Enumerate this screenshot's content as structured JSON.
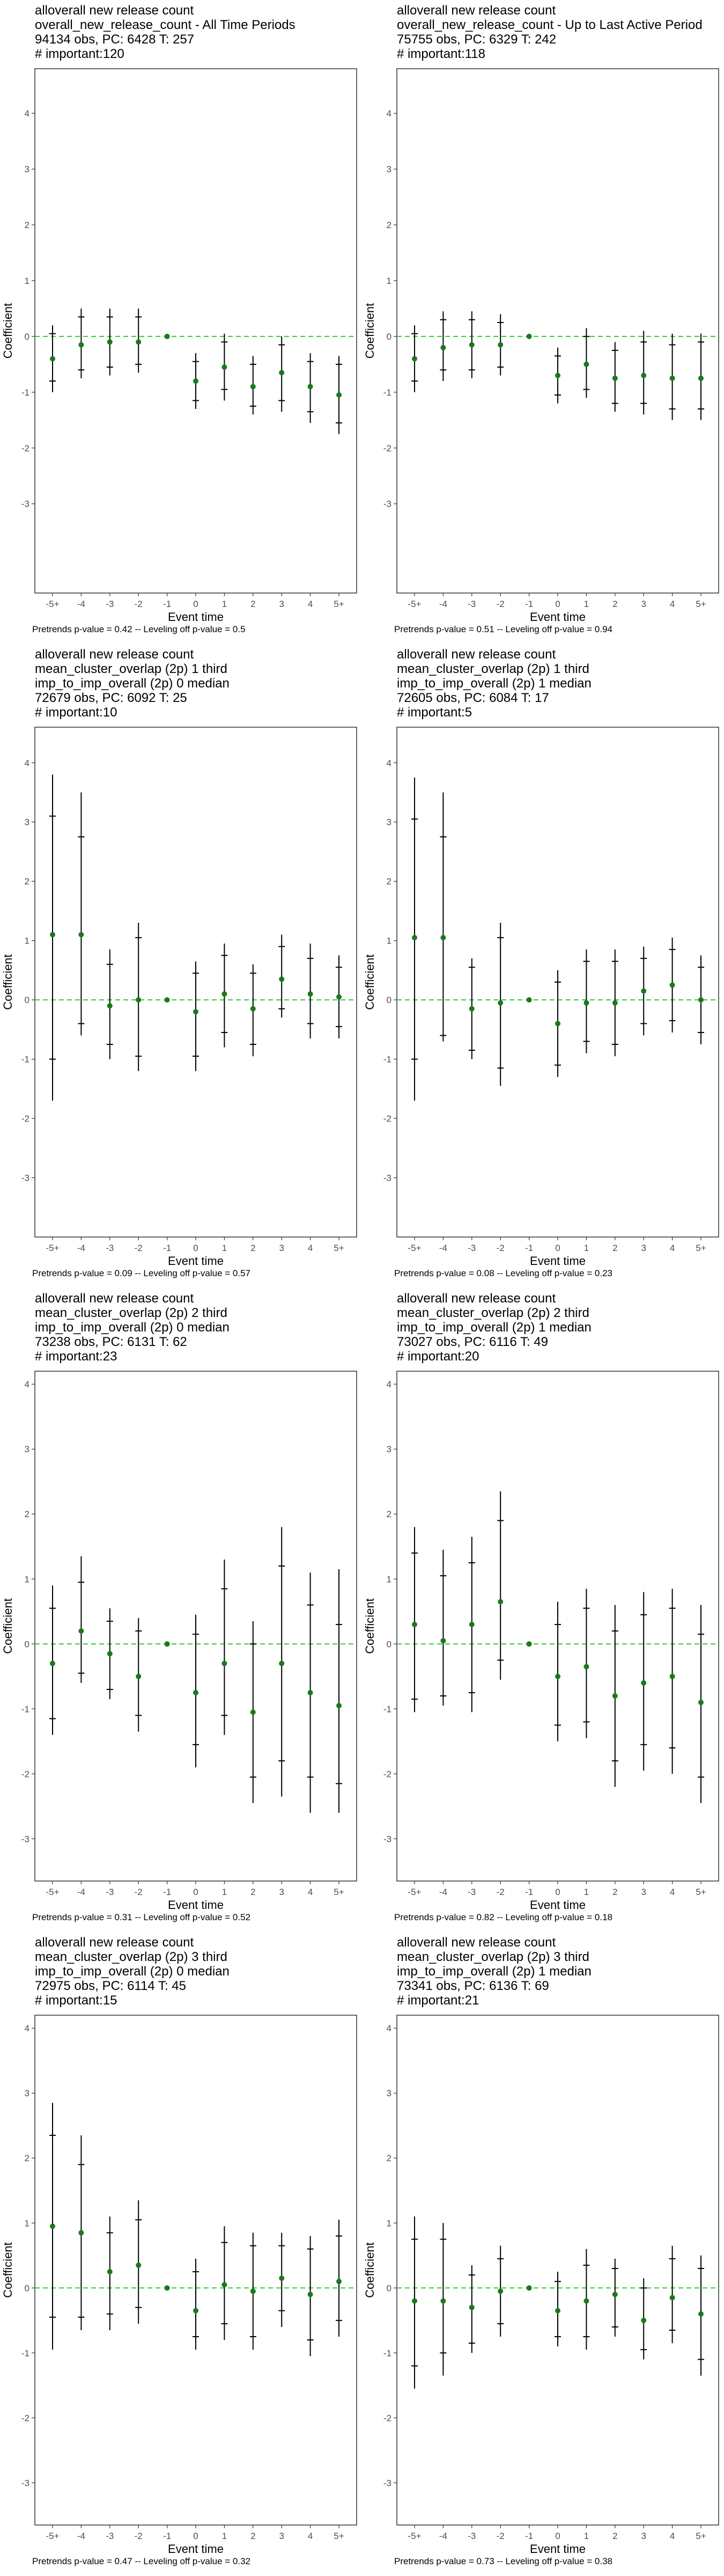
{
  "chart_data": [
    {
      "type": "scatter",
      "title_lines": [
        "alloverall new release count",
        "overall_new_release_count - All Time Periods",
        "94134 obs, PC: 6428 T: 257",
        "# important:120"
      ],
      "xlabel": "Event time",
      "ylabel": "Coefficient",
      "categories": [
        "-5+",
        "-4",
        "-3",
        "-2",
        "-1",
        "0",
        "1",
        "2",
        "3",
        "4",
        "5+"
      ],
      "ylim": [
        -4.6,
        4.8
      ],
      "yticks": [
        -3,
        -2,
        -1,
        0,
        1,
        2,
        3,
        4
      ],
      "estimates": [
        -0.4,
        -0.15,
        -0.1,
        -0.1,
        0.0,
        -0.8,
        -0.55,
        -0.9,
        -0.65,
        -0.9,
        -1.05
      ],
      "ci95": [
        [
          -1.0,
          0.2
        ],
        [
          -0.75,
          0.5
        ],
        [
          -0.7,
          0.5
        ],
        [
          -0.65,
          0.5
        ],
        [
          0.0,
          0.0
        ],
        [
          -1.3,
          -0.3
        ],
        [
          -1.15,
          0.05
        ],
        [
          -1.4,
          -0.35
        ],
        [
          -1.35,
          0.0
        ],
        [
          -1.55,
          -0.3
        ],
        [
          -1.75,
          -0.35
        ]
      ],
      "ci90": [
        [
          -0.8,
          0.05
        ],
        [
          -0.6,
          0.35
        ],
        [
          -0.55,
          0.35
        ],
        [
          -0.5,
          0.35
        ],
        [
          0.0,
          0.0
        ],
        [
          -1.15,
          -0.45
        ],
        [
          -0.95,
          -0.1
        ],
        [
          -1.25,
          -0.5
        ],
        [
          -1.15,
          -0.15
        ],
        [
          -1.35,
          -0.45
        ],
        [
          -1.55,
          -0.5
        ]
      ],
      "reference_line": 0,
      "footnote": "Pretrends p-value = 0.42 -- Leveling off p-value = 0.5"
    },
    {
      "type": "scatter",
      "title_lines": [
        "alloverall new release count",
        "overall_new_release_count - Up to Last Active Period",
        "75755 obs, PC: 6329 T: 242",
        "# important:118"
      ],
      "xlabel": "Event time",
      "ylabel": "Coefficient",
      "categories": [
        "-5+",
        "-4",
        "-3",
        "-2",
        "-1",
        "0",
        "1",
        "2",
        "3",
        "4",
        "5+"
      ],
      "ylim": [
        -4.6,
        4.8
      ],
      "yticks": [
        -3,
        -2,
        -1,
        0,
        1,
        2,
        3,
        4
      ],
      "estimates": [
        -0.4,
        -0.2,
        -0.15,
        -0.15,
        0.0,
        -0.7,
        -0.5,
        -0.75,
        -0.7,
        -0.75,
        -0.75
      ],
      "ci95": [
        [
          -1.0,
          0.2
        ],
        [
          -0.8,
          0.45
        ],
        [
          -0.75,
          0.45
        ],
        [
          -0.7,
          0.4
        ],
        [
          0.0,
          0.0
        ],
        [
          -1.2,
          -0.2
        ],
        [
          -1.1,
          0.15
        ],
        [
          -1.35,
          -0.1
        ],
        [
          -1.4,
          0.1
        ],
        [
          -1.5,
          0.05
        ],
        [
          -1.5,
          0.05
        ]
      ],
      "ci90": [
        [
          -0.8,
          0.05
        ],
        [
          -0.6,
          0.3
        ],
        [
          -0.6,
          0.3
        ],
        [
          -0.55,
          0.25
        ],
        [
          0.0,
          0.0
        ],
        [
          -1.05,
          -0.35
        ],
        [
          -0.95,
          0.0
        ],
        [
          -1.2,
          -0.25
        ],
        [
          -1.2,
          -0.1
        ],
        [
          -1.3,
          -0.15
        ],
        [
          -1.3,
          -0.1
        ]
      ],
      "reference_line": 0,
      "footnote": "Pretrends p-value = 0.51 -- Leveling off p-value = 0.94"
    },
    {
      "type": "scatter",
      "title_lines": [
        "alloverall new release count",
        "mean_cluster_overlap (2p) 1 third",
        "imp_to_imp_overall (2p) 0 median",
        "72679 obs, PC: 6092 T: 25",
        "# important:10"
      ],
      "xlabel": "Event time",
      "ylabel": "Coefficient",
      "categories": [
        "-5+",
        "-4",
        "-3",
        "-2",
        "-1",
        "0",
        "1",
        "2",
        "3",
        "4",
        "5+"
      ],
      "ylim": [
        -4.0,
        4.6
      ],
      "yticks": [
        -3,
        -2,
        -1,
        0,
        1,
        2,
        3,
        4
      ],
      "estimates": [
        1.1,
        1.1,
        -0.1,
        0.0,
        0.0,
        -0.2,
        0.1,
        -0.15,
        0.35,
        0.1,
        0.05
      ],
      "ci95": [
        [
          -1.7,
          3.8
        ],
        [
          -0.6,
          3.5
        ],
        [
          -1.0,
          0.85
        ],
        [
          -1.2,
          1.3
        ],
        [
          0.0,
          0.0
        ],
        [
          -1.2,
          0.65
        ],
        [
          -0.8,
          0.95
        ],
        [
          -0.95,
          0.6
        ],
        [
          -0.3,
          1.1
        ],
        [
          -0.65,
          0.95
        ],
        [
          -0.65,
          0.75
        ]
      ],
      "ci90": [
        [
          -1.0,
          3.1
        ],
        [
          -0.4,
          2.75
        ],
        [
          -0.75,
          0.6
        ],
        [
          -0.95,
          1.05
        ],
        [
          0.0,
          0.0
        ],
        [
          -0.95,
          0.45
        ],
        [
          -0.55,
          0.75
        ],
        [
          -0.75,
          0.45
        ],
        [
          -0.15,
          0.9
        ],
        [
          -0.4,
          0.7
        ],
        [
          -0.45,
          0.55
        ]
      ],
      "reference_line": 0,
      "footnote": "Pretrends p-value = 0.09 -- Leveling off p-value = 0.57"
    },
    {
      "type": "scatter",
      "title_lines": [
        "alloverall new release count",
        "mean_cluster_overlap (2p) 1 third",
        "imp_to_imp_overall (2p) 1 median",
        "72605 obs, PC: 6084 T: 17",
        "# important:5"
      ],
      "xlabel": "Event time",
      "ylabel": "Coefficient",
      "categories": [
        "-5+",
        "-4",
        "-3",
        "-2",
        "-1",
        "0",
        "1",
        "2",
        "3",
        "4",
        "5+"
      ],
      "ylim": [
        -4.0,
        4.6
      ],
      "yticks": [
        -3,
        -2,
        -1,
        0,
        1,
        2,
        3,
        4
      ],
      "estimates": [
        1.05,
        1.05,
        -0.15,
        -0.05,
        0.0,
        -0.4,
        -0.05,
        -0.05,
        0.15,
        0.25,
        0.0
      ],
      "ci95": [
        [
          -1.7,
          3.75
        ],
        [
          -0.7,
          3.5
        ],
        [
          -1.0,
          0.7
        ],
        [
          -1.45,
          1.3
        ],
        [
          0.0,
          0.0
        ],
        [
          -1.3,
          0.5
        ],
        [
          -0.9,
          0.85
        ],
        [
          -0.95,
          0.85
        ],
        [
          -0.6,
          0.9
        ],
        [
          -0.55,
          1.05
        ],
        [
          -0.75,
          0.75
        ]
      ],
      "ci90": [
        [
          -1.0,
          3.05
        ],
        [
          -0.6,
          2.75
        ],
        [
          -0.85,
          0.55
        ],
        [
          -1.15,
          1.05
        ],
        [
          0.0,
          0.0
        ],
        [
          -1.1,
          0.3
        ],
        [
          -0.7,
          0.65
        ],
        [
          -0.75,
          0.65
        ],
        [
          -0.4,
          0.7
        ],
        [
          -0.35,
          0.85
        ],
        [
          -0.55,
          0.55
        ]
      ],
      "reference_line": 0,
      "footnote": "Pretrends p-value = 0.08 -- Leveling off p-value = 0.23"
    },
    {
      "type": "scatter",
      "title_lines": [
        "alloverall new release count",
        "mean_cluster_overlap (2p) 2 third",
        "imp_to_imp_overall (2p) 0 median",
        "73238 obs, PC: 6131 T: 62",
        "# important:23"
      ],
      "xlabel": "Event time",
      "ylabel": "Coefficient",
      "categories": [
        "-5+",
        "-4",
        "-3",
        "-2",
        "-1",
        "0",
        "1",
        "2",
        "3",
        "4",
        "5+"
      ],
      "ylim": [
        -3.65,
        4.2
      ],
      "yticks": [
        -3,
        -2,
        -1,
        0,
        1,
        2,
        3,
        4
      ],
      "estimates": [
        -0.3,
        0.2,
        -0.15,
        -0.5,
        0.0,
        -0.75,
        -0.3,
        -1.05,
        -0.3,
        -0.75,
        -0.95
      ],
      "ci95": [
        [
          -1.4,
          0.9
        ],
        [
          -0.6,
          1.35
        ],
        [
          -0.85,
          0.55
        ],
        [
          -1.35,
          0.4
        ],
        [
          0.0,
          0.0
        ],
        [
          -1.9,
          0.45
        ],
        [
          -1.4,
          1.3
        ],
        [
          -2.45,
          0.35
        ],
        [
          -2.35,
          1.8
        ],
        [
          -2.6,
          1.1
        ],
        [
          -2.6,
          1.15
        ]
      ],
      "ci90": [
        [
          -1.15,
          0.55
        ],
        [
          -0.45,
          0.95
        ],
        [
          -0.7,
          0.35
        ],
        [
          -1.1,
          0.2
        ],
        [
          0.0,
          0.0
        ],
        [
          -1.55,
          0.15
        ],
        [
          -1.1,
          0.85
        ],
        [
          -2.05,
          0.0
        ],
        [
          -1.8,
          1.2
        ],
        [
          -2.05,
          0.6
        ],
        [
          -2.15,
          0.3
        ]
      ],
      "reference_line": 0,
      "footnote": "Pretrends p-value = 0.31 -- Leveling off p-value = 0.52"
    },
    {
      "type": "scatter",
      "title_lines": [
        "alloverall new release count",
        "mean_cluster_overlap (2p) 2 third",
        "imp_to_imp_overall (2p) 1 median",
        "73027 obs, PC: 6116 T: 49",
        "# important:20"
      ],
      "xlabel": "Event time",
      "ylabel": "Coefficient",
      "categories": [
        "-5+",
        "-4",
        "-3",
        "-2",
        "-1",
        "0",
        "1",
        "2",
        "3",
        "4",
        "5+"
      ],
      "ylim": [
        -3.65,
        4.2
      ],
      "yticks": [
        -3,
        -2,
        -1,
        0,
        1,
        2,
        3,
        4
      ],
      "estimates": [
        0.3,
        0.05,
        0.3,
        0.65,
        0.0,
        -0.5,
        -0.35,
        -0.8,
        -0.6,
        -0.5,
        -0.9
      ],
      "ci95": [
        [
          -1.05,
          1.8
        ],
        [
          -0.95,
          1.45
        ],
        [
          -1.05,
          1.65
        ],
        [
          -0.55,
          2.35
        ],
        [
          0.0,
          0.0
        ],
        [
          -1.5,
          0.65
        ],
        [
          -1.45,
          0.85
        ],
        [
          -2.2,
          0.6
        ],
        [
          -1.95,
          0.8
        ],
        [
          -2.0,
          0.85
        ],
        [
          -2.45,
          0.6
        ]
      ],
      "ci90": [
        [
          -0.85,
          1.4
        ],
        [
          -0.8,
          1.05
        ],
        [
          -0.75,
          1.25
        ],
        [
          -0.25,
          1.9
        ],
        [
          0.0,
          0.0
        ],
        [
          -1.25,
          0.3
        ],
        [
          -1.2,
          0.55
        ],
        [
          -1.8,
          0.2
        ],
        [
          -1.55,
          0.45
        ],
        [
          -1.6,
          0.55
        ],
        [
          -2.05,
          0.15
        ]
      ],
      "reference_line": 0,
      "footnote": "Pretrends p-value = 0.82 -- Leveling off p-value = 0.18"
    },
    {
      "type": "scatter",
      "title_lines": [
        "alloverall new release count",
        "mean_cluster_overlap (2p) 3 third",
        "imp_to_imp_overall (2p) 0 median",
        "72975 obs, PC: 6114 T: 45",
        "# important:15"
      ],
      "xlabel": "Event time",
      "ylabel": "Coefficient",
      "categories": [
        "-5+",
        "-4",
        "-3",
        "-2",
        "-1",
        "0",
        "1",
        "2",
        "3",
        "4",
        "5+"
      ],
      "ylim": [
        -3.65,
        4.2
      ],
      "yticks": [
        -3,
        -2,
        -1,
        0,
        1,
        2,
        3,
        4
      ],
      "estimates": [
        0.95,
        0.85,
        0.25,
        0.35,
        0.0,
        -0.35,
        0.05,
        -0.05,
        0.15,
        -0.1,
        0.1
      ],
      "ci95": [
        [
          -0.95,
          2.85
        ],
        [
          -0.65,
          2.35
        ],
        [
          -0.65,
          1.1
        ],
        [
          -0.55,
          1.35
        ],
        [
          0.0,
          0.0
        ],
        [
          -0.95,
          0.45
        ],
        [
          -0.8,
          0.95
        ],
        [
          -0.95,
          0.85
        ],
        [
          -0.6,
          0.85
        ],
        [
          -1.05,
          0.8
        ],
        [
          -0.75,
          1.05
        ]
      ],
      "ci90": [
        [
          -0.45,
          2.35
        ],
        [
          -0.45,
          1.9
        ],
        [
          -0.4,
          0.85
        ],
        [
          -0.3,
          1.05
        ],
        [
          0.0,
          0.0
        ],
        [
          -0.75,
          0.25
        ],
        [
          -0.55,
          0.7
        ],
        [
          -0.75,
          0.65
        ],
        [
          -0.35,
          0.65
        ],
        [
          -0.8,
          0.6
        ],
        [
          -0.5,
          0.8
        ]
      ],
      "reference_line": 0,
      "footnote": "Pretrends p-value = 0.47 -- Leveling off p-value = 0.32"
    },
    {
      "type": "scatter",
      "title_lines": [
        "alloverall new release count",
        "mean_cluster_overlap (2p) 3 third",
        "imp_to_imp_overall (2p) 1 median",
        "73341 obs, PC: 6136 T: 69",
        "# important:21"
      ],
      "xlabel": "Event time",
      "ylabel": "Coefficient",
      "categories": [
        "-5+",
        "-4",
        "-3",
        "-2",
        "-1",
        "0",
        "1",
        "2",
        "3",
        "4",
        "5+"
      ],
      "ylim": [
        -3.65,
        4.2
      ],
      "yticks": [
        -3,
        -2,
        -1,
        0,
        1,
        2,
        3,
        4
      ],
      "estimates": [
        -0.2,
        -0.2,
        -0.3,
        -0.05,
        0.0,
        -0.35,
        -0.2,
        -0.1,
        -0.5,
        -0.15,
        -0.4
      ],
      "ci95": [
        [
          -1.55,
          1.1
        ],
        [
          -1.35,
          1.0
        ],
        [
          -1.0,
          0.35
        ],
        [
          -0.75,
          0.65
        ],
        [
          0.0,
          0.0
        ],
        [
          -0.9,
          0.25
        ],
        [
          -0.95,
          0.6
        ],
        [
          -0.75,
          0.45
        ],
        [
          -1.1,
          0.15
        ],
        [
          -0.85,
          0.65
        ],
        [
          -1.35,
          0.5
        ]
      ],
      "ci90": [
        [
          -1.2,
          0.75
        ],
        [
          -1.0,
          0.75
        ],
        [
          -0.85,
          0.2
        ],
        [
          -0.55,
          0.45
        ],
        [
          0.0,
          0.0
        ],
        [
          -0.75,
          0.1
        ],
        [
          -0.75,
          0.35
        ],
        [
          -0.6,
          0.3
        ],
        [
          -0.95,
          0.0
        ],
        [
          -0.65,
          0.45
        ],
        [
          -1.1,
          0.3
        ]
      ],
      "reference_line": 0,
      "footnote": "Pretrends p-value = 0.73 -- Leveling off p-value = 0.38"
    }
  ],
  "colors": {
    "point": "#1a7a1a",
    "reference_line": "#33cc33",
    "error_bar": "#000000",
    "panel_border": "#333333",
    "axis_text": "#4d4d4d"
  }
}
